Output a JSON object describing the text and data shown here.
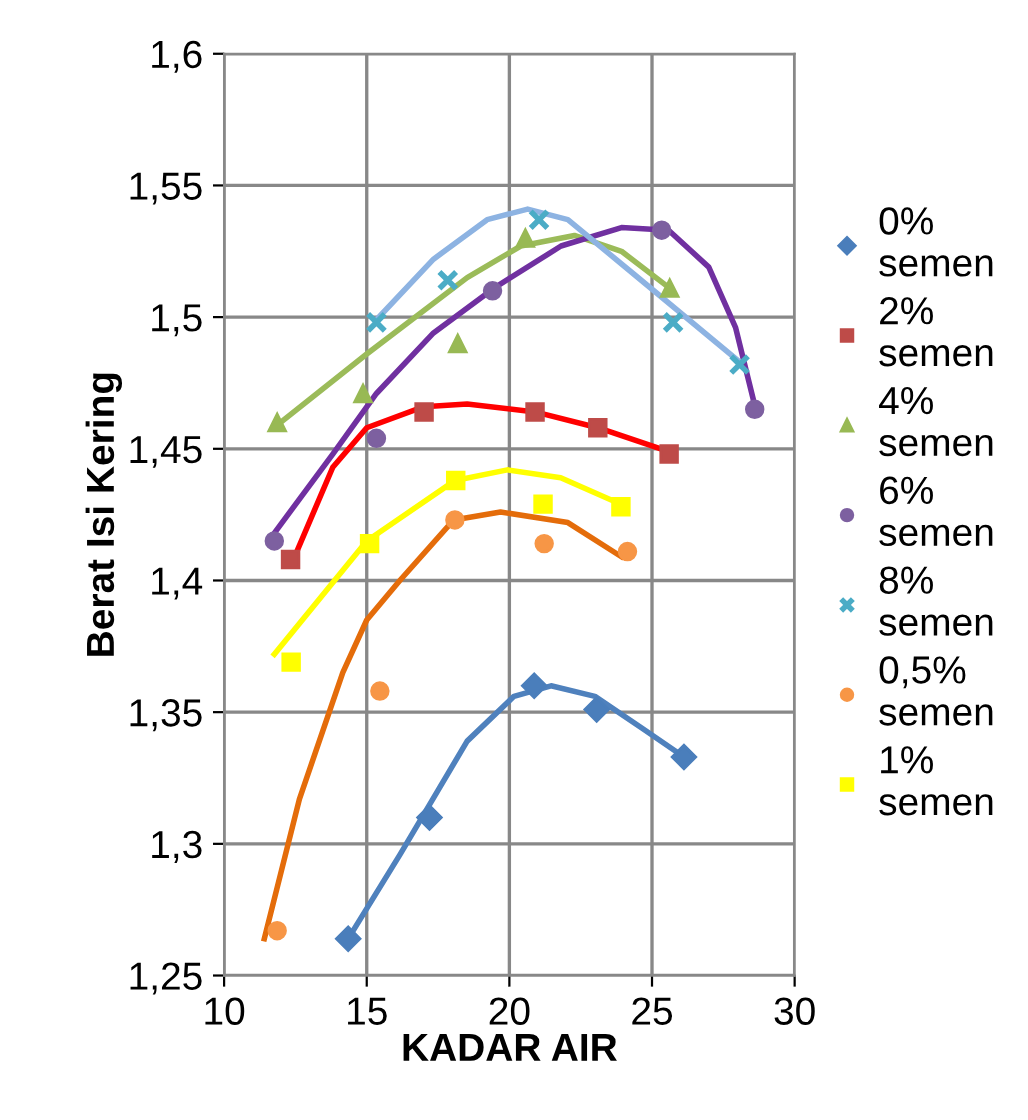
{
  "chart_data": {
    "type": "scatter",
    "xlabel": "KADAR AIR",
    "ylabel": "Berat Isi Kering",
    "xlim": [
      10,
      30
    ],
    "xticks": [
      10,
      15,
      20,
      25,
      30
    ],
    "ylim": [
      1.25,
      1.6
    ],
    "yticks": [
      {
        "value": 1.25,
        "label": "1,25"
      },
      {
        "value": 1.3,
        "label": "1,3"
      },
      {
        "value": 1.35,
        "label": "1,35"
      },
      {
        "value": 1.4,
        "label": "1,4"
      },
      {
        "value": 1.45,
        "label": "1,45"
      },
      {
        "value": 1.5,
        "label": "1,5"
      },
      {
        "value": 1.55,
        "label": "1,55"
      },
      {
        "value": 1.6,
        "label": "1,6"
      }
    ],
    "grid": true,
    "legend": "right",
    "series": [
      {
        "type": "line",
        "color": "#4f81bd",
        "marker": "none",
        "line_style": "solid",
        "x": [
          14.35,
          16.17,
          18.52,
          20.16,
          21.46,
          23.0,
          24.64,
          26.12
        ],
        "values": [
          1.264,
          1.296,
          1.339,
          1.356,
          1.36,
          1.356,
          1.344,
          1.333
        ]
      },
      {
        "type": "line",
        "color": "#ff0000",
        "marker": "none",
        "line_style": "solid",
        "x": [
          12.47,
          13.81,
          15.0,
          17.0,
          18.52,
          20.9,
          23.1,
          25.58
        ],
        "values": [
          1.409,
          1.443,
          1.458,
          1.466,
          1.467,
          1.464,
          1.458,
          1.449
        ]
      },
      {
        "type": "line",
        "color": "#9bbb59",
        "marker": "none",
        "line_style": "solid",
        "x": [
          11.86,
          15.0,
          18.52,
          20.4,
          22.28,
          23.93,
          25.62
        ],
        "values": [
          1.459,
          1.486,
          1.515,
          1.527,
          1.531,
          1.525,
          1.511
        ]
      },
      {
        "type": "line",
        "color": "#7030a0",
        "marker": "none",
        "line_style": "solid",
        "x": [
          11.76,
          13.81,
          15.34,
          17.34,
          19.46,
          21.81,
          23.93,
          25.58,
          26.99,
          27.93,
          28.59
        ],
        "values": [
          1.418,
          1.448,
          1.471,
          1.494,
          1.511,
          1.527,
          1.534,
          1.533,
          1.519,
          1.496,
          1.467
        ]
      },
      {
        "type": "line",
        "color": "#8db3e2",
        "marker": "none",
        "line_style": "solid",
        "x": [
          15.34,
          17.34,
          19.22,
          20.64,
          22.05,
          24.4,
          28.07
        ],
        "values": [
          1.499,
          1.522,
          1.537,
          1.541,
          1.537,
          1.516,
          1.483
        ]
      },
      {
        "type": "line",
        "color": "#e46c0a",
        "marker": "none",
        "line_style": "solid",
        "x": [
          11.41,
          12.64,
          14.16,
          15.0,
          16.16,
          18.05,
          19.69,
          22.05,
          23.93
        ],
        "values": [
          1.264,
          1.317,
          1.365,
          1.385,
          1.4,
          1.423,
          1.426,
          1.422,
          1.409
        ]
      },
      {
        "type": "line",
        "color": "#ffff00",
        "marker": "none",
        "line_style": "solid",
        "x": [
          11.76,
          15.0,
          18.1,
          19.93,
          21.8,
          23.9
        ],
        "values": [
          1.372,
          1.415,
          1.438,
          1.442,
          1.439,
          1.429
        ]
      },
      {
        "name": "0% semen",
        "color": "#4a7ebb",
        "marker": "diamond",
        "x": [
          14.35,
          17.2,
          20.87,
          23.06,
          26.12
        ],
        "values": [
          1.264,
          1.31,
          1.36,
          1.351,
          1.333
        ]
      },
      {
        "name": "2% semen",
        "color": "#be4b48",
        "marker": "square",
        "x": [
          12.33,
          17.01,
          20.9,
          23.1,
          25.6
        ],
        "values": [
          1.408,
          1.464,
          1.464,
          1.458,
          1.448
        ]
      },
      {
        "name": "4% semen",
        "color": "#98b954",
        "marker": "triangle",
        "x": [
          11.86,
          14.87,
          18.19,
          20.56,
          25.62
        ],
        "values": [
          1.46,
          1.471,
          1.49,
          1.53,
          1.511
        ]
      },
      {
        "name": "6% semen",
        "color": "#7d60a0",
        "marker": "circle",
        "x": [
          11.76,
          15.34,
          19.41,
          25.34,
          28.6
        ],
        "values": [
          1.415,
          1.454,
          1.51,
          1.533,
          1.465
        ]
      },
      {
        "name": "8% semen",
        "color": "#4bacc6",
        "marker": "cross",
        "x": [
          15.34,
          17.84,
          21.04,
          25.74,
          28.07
        ],
        "values": [
          1.498,
          1.514,
          1.537,
          1.498,
          1.482
        ]
      },
      {
        "name": "0,5% semen",
        "color": "#f79646",
        "marker": "circle",
        "x": [
          11.86,
          15.46,
          18.09,
          21.22,
          24.14
        ],
        "values": [
          1.267,
          1.358,
          1.423,
          1.414,
          1.411
        ]
      },
      {
        "name": "1% semen",
        "color": "#ffff00",
        "marker": "square",
        "x": [
          12.35,
          15.1,
          18.12,
          21.18,
          23.91
        ],
        "values": [
          1.369,
          1.414,
          1.438,
          1.429,
          1.428
        ]
      }
    ]
  }
}
